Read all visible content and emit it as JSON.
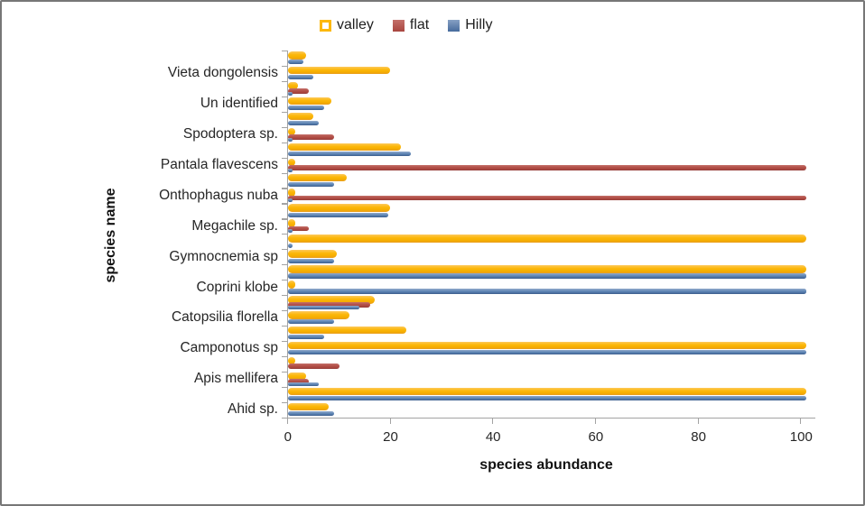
{
  "legend": {
    "items": [
      {
        "label": "valley",
        "color": "#fcb80b"
      },
      {
        "label": "flat",
        "color": "#b25048"
      },
      {
        "label": "Hilly",
        "color": "#5e86b5"
      }
    ]
  },
  "axes": {
    "x_title": "species abundance",
    "y_title": "species name",
    "x_tick_labels": [
      "0",
      "20",
      "40",
      "60",
      "80",
      "100"
    ]
  },
  "chart_data": {
    "type": "bar",
    "orientation": "horizontal",
    "title": "",
    "xlabel": "species abundance",
    "ylabel": "species name",
    "xlim": [
      0,
      100
    ],
    "x_ticks": [
      0,
      20,
      40,
      60,
      80,
      100
    ],
    "grid": false,
    "legend_position": "top",
    "series_names": [
      "valley",
      "flat",
      "Hilly"
    ],
    "series_colors": {
      "valley": "#fcb80b",
      "flat": "#b25048",
      "Hilly": "#5e86b5"
    },
    "categories": [
      "Vieta dongolensis",
      "Un identified",
      "Spodoptera sp.",
      "Pantala flavescens",
      "Onthophagus nuba",
      "Megachile sp.",
      "Gymnocnemia sp",
      "Coprini klobe",
      "Catopsilia florella",
      "Camponotus sp",
      "Apis mellifera",
      "Ahid sp."
    ],
    "note": "Each species is drawn as two stacked bar rows; the species label aligns with the lower row. Values estimated from the 0-100 axis; bars reaching past the 100 tick read as ~101.",
    "rows": [
      {
        "species": "Vieta dongolensis",
        "row": "upper",
        "valley": 3.5,
        "flat": 0,
        "Hilly": 3
      },
      {
        "species": "Vieta dongolensis",
        "row": "lower",
        "valley": 20,
        "flat": 0,
        "Hilly": 5
      },
      {
        "species": "Un identified",
        "row": "upper",
        "valley": 2,
        "flat": 4,
        "Hilly": 1
      },
      {
        "species": "Un identified",
        "row": "lower",
        "valley": 8.5,
        "flat": 0,
        "Hilly": 7
      },
      {
        "species": "Spodoptera sp.",
        "row": "upper",
        "valley": 5,
        "flat": 0,
        "Hilly": 6
      },
      {
        "species": "Spodoptera sp.",
        "row": "lower",
        "valley": 1.5,
        "flat": 9,
        "Hilly": 1
      },
      {
        "species": "Pantala flavescens",
        "row": "upper",
        "valley": 22,
        "flat": 0,
        "Hilly": 24
      },
      {
        "species": "Pantala flavescens",
        "row": "lower",
        "valley": 1.5,
        "flat": 101,
        "Hilly": 1
      },
      {
        "species": "Onthophagus nuba",
        "row": "upper",
        "valley": 11.5,
        "flat": 0,
        "Hilly": 9
      },
      {
        "species": "Onthophagus nuba",
        "row": "lower",
        "valley": 1.5,
        "flat": 101,
        "Hilly": 1
      },
      {
        "species": "Megachile sp.",
        "row": "upper",
        "valley": 20,
        "flat": 0,
        "Hilly": 19.5
      },
      {
        "species": "Megachile sp.",
        "row": "lower",
        "valley": 1.5,
        "flat": 4,
        "Hilly": 1
      },
      {
        "species": "Gymnocnemia sp",
        "row": "upper",
        "valley": 101,
        "flat": 0,
        "Hilly": 1
      },
      {
        "species": "Gymnocnemia sp",
        "row": "lower",
        "valley": 9.5,
        "flat": 0,
        "Hilly": 9
      },
      {
        "species": "Coprini klobe",
        "row": "upper",
        "valley": 101,
        "flat": 0,
        "Hilly": 101
      },
      {
        "species": "Coprini klobe",
        "row": "lower",
        "valley": 1.5,
        "flat": 0,
        "Hilly": 101
      },
      {
        "species": "Catopsilia florella",
        "row": "upper",
        "valley": 17,
        "flat": 16,
        "Hilly": 14
      },
      {
        "species": "Catopsilia florella",
        "row": "lower",
        "valley": 12,
        "flat": 0,
        "Hilly": 9
      },
      {
        "species": "Camponotus sp",
        "row": "upper",
        "valley": 23,
        "flat": 0,
        "Hilly": 7
      },
      {
        "species": "Camponotus sp",
        "row": "lower",
        "valley": 101,
        "flat": 0,
        "Hilly": 101
      },
      {
        "species": "Apis mellifera",
        "row": "upper",
        "valley": 1.5,
        "flat": 10,
        "Hilly": 0
      },
      {
        "species": "Apis mellifera",
        "row": "lower",
        "valley": 3.5,
        "flat": 4,
        "Hilly": 6
      },
      {
        "species": "Ahid sp.",
        "row": "upper",
        "valley": 101,
        "flat": 0,
        "Hilly": 101
      },
      {
        "species": "Ahid sp.",
        "row": "lower",
        "valley": 8,
        "flat": 0,
        "Hilly": 9
      }
    ]
  }
}
